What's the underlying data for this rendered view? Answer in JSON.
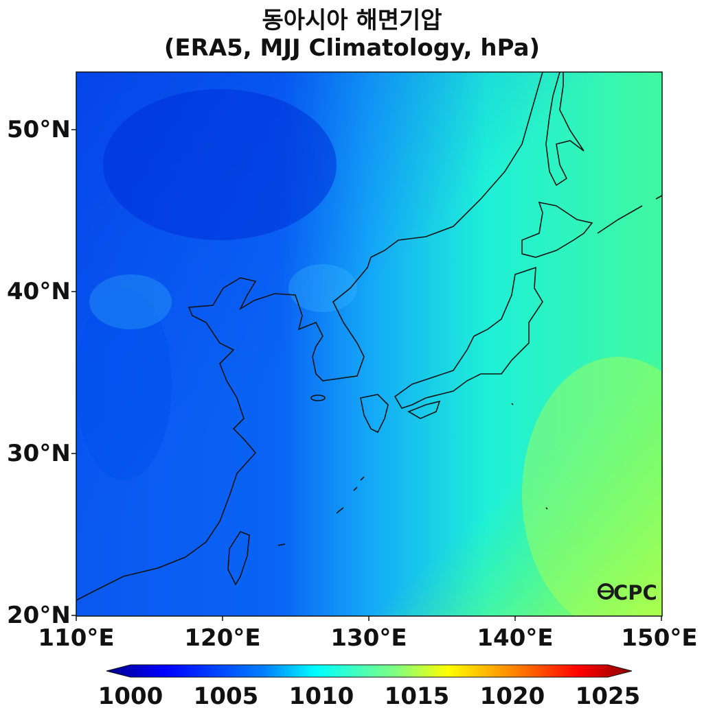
{
  "title": "동아시아 해면기압",
  "subtitle": "(ERA5, MJJ Climatology, hPa)",
  "map": {
    "extent_lon": [
      110,
      150
    ],
    "extent_lat": [
      20,
      53.5
    ],
    "lat_labels": [
      "50°N",
      "40°N",
      "30°N",
      "20°N"
    ],
    "lon_labels": [
      "110°E",
      "120°E",
      "130°E",
      "140°E",
      "150°E"
    ]
  },
  "colorbar": {
    "min": 1000,
    "max": 1025,
    "tick_labels": [
      "1000",
      "1005",
      "1010",
      "1015",
      "1020",
      "1025"
    ],
    "colors": [
      "#00008b",
      "#0000ff",
      "#0080ff",
      "#00ffff",
      "#80ff80",
      "#ffff00",
      "#ff8000",
      "#ff0000",
      "#8b0000"
    ]
  },
  "watermark": "OCPC"
}
